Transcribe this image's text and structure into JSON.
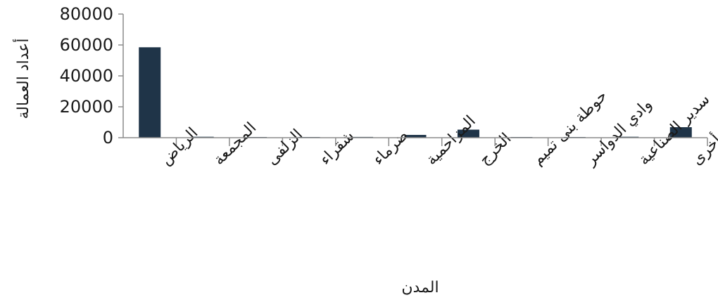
{
  "chart_data": {
    "type": "bar",
    "title": "",
    "xlabel": "المدن",
    "ylabel": "أعداد العمالة",
    "ylim": [
      0,
      80000
    ],
    "yticks": [
      0,
      20000,
      40000,
      60000,
      80000
    ],
    "ytick_labels": [
      "0",
      "20000",
      "40000",
      "60000",
      "80000"
    ],
    "grid": false,
    "legend": "none",
    "bar_color": "#1f3448",
    "categories": [
      "الرياض",
      "المجمعة",
      "الزلفى",
      "شقراء",
      "ضرماء",
      "المزاحمية",
      "الخرج",
      "حوطة بنى تميم",
      "وادي الدواسر",
      "سدير الصناعية",
      "أخرى"
    ],
    "values": [
      58500,
      600,
      200,
      100,
      500,
      1800,
      5200,
      100,
      100,
      600,
      6800
    ]
  }
}
